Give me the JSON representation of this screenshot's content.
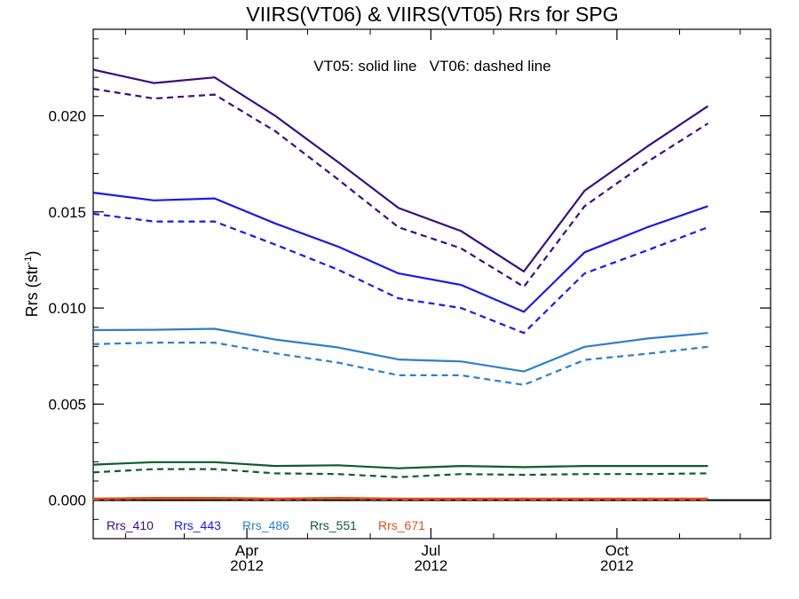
{
  "chart_data": {
    "type": "line",
    "title": "VIIRS(VT06) & VIIRS(VT05)  Rrs for SPG",
    "annotation": "VT05: solid line   VT06: dashed line",
    "ylabel_main": "Rrs (str",
    "ylabel_sup": "-1",
    "ylabel_close": ")",
    "xlabel": "",
    "xlim": [
      "2012-01-16",
      "2012-12-16"
    ],
    "ylim": [
      -0.002,
      0.0245
    ],
    "y_ticks": [
      0.0,
      0.005,
      0.01,
      0.015,
      0.02
    ],
    "y_tick_labels": [
      "0.000",
      "0.005",
      "0.010",
      "0.015",
      "0.020"
    ],
    "x_ticks": [
      {
        "date": "2012-04-01",
        "month": "Apr",
        "year": "2012"
      },
      {
        "date": "2012-07-01",
        "month": "Jul",
        "year": "2012"
      },
      {
        "date": "2012-10-01",
        "month": "Oct",
        "year": "2012"
      }
    ],
    "grid": false,
    "legend_position": "bottom-left",
    "x": [
      "2012-01-16",
      "2012-02-15",
      "2012-03-16",
      "2012-04-15",
      "2012-05-16",
      "2012-06-15",
      "2012-07-16",
      "2012-08-16",
      "2012-09-15",
      "2012-10-16",
      "2012-11-15"
    ],
    "series": [
      {
        "name": "Rrs_410",
        "sensor": "VT05",
        "style": "solid",
        "color": "#3a0d80",
        "values": [
          0.0224,
          0.0217,
          0.022,
          0.02,
          0.0176,
          0.0152,
          0.014,
          0.0119,
          0.0161,
          0.0184,
          0.0205
        ]
      },
      {
        "name": "Rrs_410",
        "sensor": "VT06",
        "style": "dashed",
        "color": "#3a0d80",
        "values": [
          0.0214,
          0.0209,
          0.0211,
          0.0192,
          0.0167,
          0.0142,
          0.0131,
          0.0111,
          0.0153,
          0.0176,
          0.0196
        ]
      },
      {
        "name": "Rrs_443",
        "sensor": "VT05",
        "style": "solid",
        "color": "#1a1ae6",
        "values": [
          0.016,
          0.0156,
          0.0157,
          0.0144,
          0.0132,
          0.0118,
          0.0112,
          0.0098,
          0.0129,
          0.0142,
          0.0153
        ]
      },
      {
        "name": "Rrs_443",
        "sensor": "VT06",
        "style": "dashed",
        "color": "#1a1ae6",
        "values": [
          0.0149,
          0.0145,
          0.0145,
          0.0133,
          0.012,
          0.0105,
          0.01,
          0.0087,
          0.0118,
          0.013,
          0.0142
        ]
      },
      {
        "name": "Rrs_486",
        "sensor": "VT05",
        "style": "solid",
        "color": "#2c80c8",
        "values": [
          0.00885,
          0.00887,
          0.00892,
          0.00836,
          0.00795,
          0.00732,
          0.00722,
          0.0067,
          0.00798,
          0.00841,
          0.0087
        ]
      },
      {
        "name": "Rrs_486",
        "sensor": "VT06",
        "style": "dashed",
        "color": "#2c80c8",
        "values": [
          0.00812,
          0.0082,
          0.0082,
          0.00764,
          0.00716,
          0.0065,
          0.0065,
          0.006,
          0.0073,
          0.00762,
          0.00798
        ]
      },
      {
        "name": "Rrs_551",
        "sensor": "VT05",
        "style": "solid",
        "color": "#0d5c2e",
        "values": [
          0.00185,
          0.00198,
          0.00198,
          0.00178,
          0.00182,
          0.00166,
          0.00178,
          0.00172,
          0.00178,
          0.00178,
          0.00178
        ]
      },
      {
        "name": "Rrs_551",
        "sensor": "VT06",
        "style": "dashed",
        "color": "#0d5c2e",
        "values": [
          0.00145,
          0.00162,
          0.00162,
          0.0014,
          0.00136,
          0.0012,
          0.00136,
          0.00132,
          0.00136,
          0.00136,
          0.0014
        ]
      },
      {
        "name": "Rrs_671",
        "sensor": "VT05",
        "style": "solid",
        "color": "#e0501a",
        "values": [
          8e-05,
          0.00012,
          0.00012,
          8e-05,
          0.00012,
          8e-05,
          8e-05,
          8e-05,
          8e-05,
          8e-05,
          8e-05
        ]
      },
      {
        "name": "Rrs_671",
        "sensor": "VT06",
        "style": "dashed",
        "color": "#e0501a",
        "values": [
          4e-05,
          8e-05,
          8e-05,
          4e-05,
          8e-05,
          4e-05,
          4e-05,
          4e-05,
          4e-05,
          4e-05,
          4e-05
        ]
      }
    ],
    "reference_line": {
      "y": 0.0,
      "color": "#000000"
    },
    "legend": [
      {
        "label": "Rrs_410",
        "color": "#3a0d80"
      },
      {
        "label": "Rrs_443",
        "color": "#1a1ae6"
      },
      {
        "label": "Rrs_486",
        "color": "#2c80c8"
      },
      {
        "label": "Rrs_551",
        "color": "#0d5c2e"
      },
      {
        "label": "Rrs_671",
        "color": "#e0501a"
      }
    ]
  }
}
